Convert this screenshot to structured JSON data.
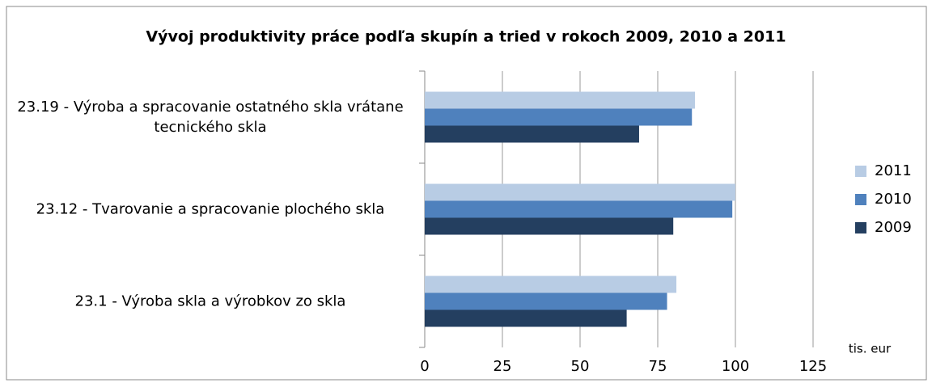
{
  "chart_data": {
    "type": "hbar",
    "title": "Vývoj produktivity práce podľa skupín a tried v rokoch 2009, 2010 a 2011",
    "categories": [
      "23.19 - Výroba a spracovanie ostatného skla vrátane tecnického skla",
      "23.12 - Tvarovanie a spracovanie plochého skla",
      "23.1 - Výroba skla a výrobkov zo skla"
    ],
    "series": [
      {
        "name": "2011",
        "color": "#b8cce4",
        "values": [
          87,
          100,
          81
        ]
      },
      {
        "name": "2010",
        "color": "#4f81bd",
        "values": [
          86,
          99,
          78
        ]
      },
      {
        "name": "2009",
        "color": "#243f60",
        "values": [
          69,
          80,
          65
        ]
      }
    ],
    "xlabel": "tis. eur",
    "xlim": [
      0,
      125
    ],
    "xticks": [
      0,
      25,
      50,
      75,
      100,
      125
    ],
    "grid": true,
    "legend": "right"
  }
}
